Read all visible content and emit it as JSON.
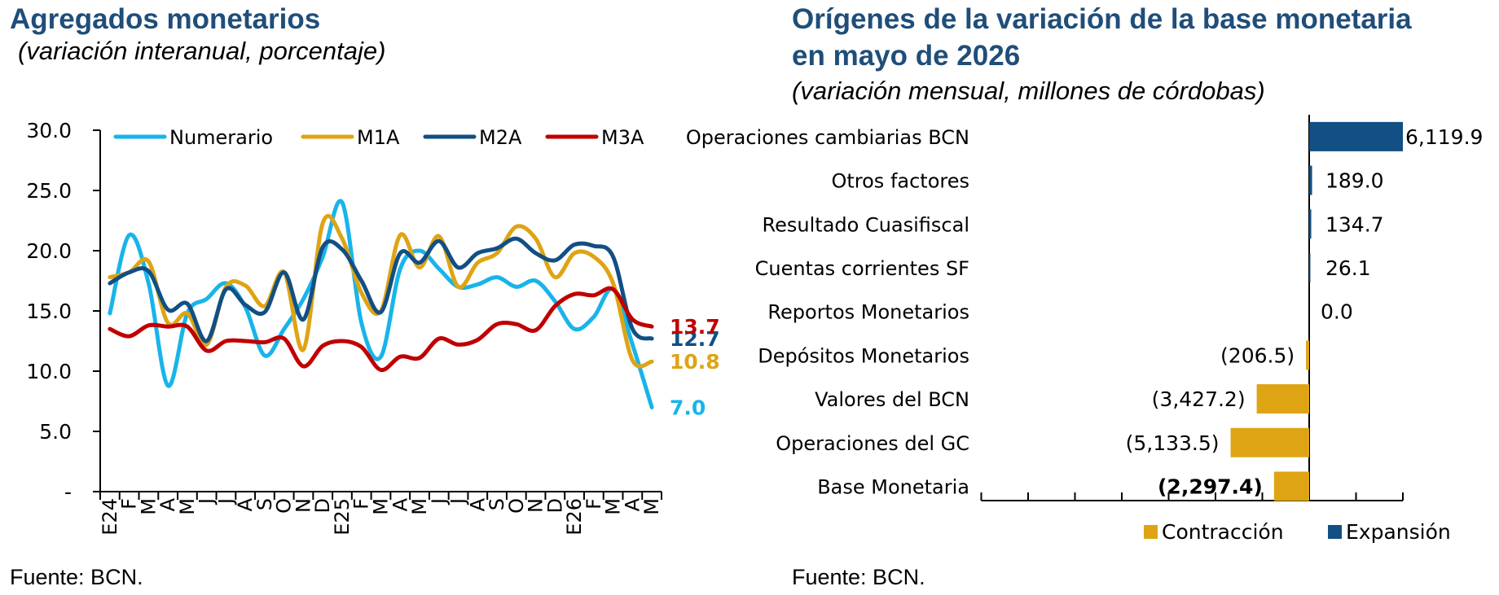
{
  "left": {
    "title": "Agregados monetarios",
    "subtitle": "(variación interanual, porcentaje)",
    "source": "Fuente: BCN."
  },
  "right": {
    "title_line1": "Orígenes de la variación de la base monetaria",
    "title_line2": "en mayo de 2026",
    "subtitle": "(variación mensual, millones de córdobas)",
    "source": "Fuente: BCN."
  },
  "chart_data": [
    {
      "type": "line",
      "categories": [
        "E24",
        "F",
        "M",
        "A",
        "M",
        "J",
        "J",
        "A",
        "S",
        "O",
        "N",
        "D",
        "E25",
        "F",
        "M",
        "A",
        "M",
        "J",
        "J",
        "A",
        "S",
        "O",
        "N",
        "D",
        "E26",
        "F",
        "M",
        "A",
        "M"
      ],
      "y_tick_labels": [
        "-",
        "5.0",
        "10.0",
        "15.0",
        "20.0",
        "25.0",
        "30.0"
      ],
      "ylim": [
        0,
        30
      ],
      "legend_position": "top",
      "series": [
        {
          "name": "Numerario",
          "color": "#18b4ea",
          "values": [
            14.8,
            21.3,
            17.3,
            8.8,
            14.8,
            16.0,
            17.3,
            15.3,
            11.3,
            13.5,
            16.0,
            19.5,
            24.0,
            14.0,
            11.2,
            18.5,
            20.0,
            18.5,
            17.0,
            17.2,
            17.8,
            17.0,
            17.5,
            15.8,
            13.5,
            14.5,
            16.8,
            12.2,
            7.0
          ],
          "end_label": "7.0"
        },
        {
          "name": "M1A",
          "color": "#dea414",
          "values": [
            17.8,
            18.2,
            19.1,
            14.0,
            14.8,
            12.2,
            17.0,
            17.1,
            15.4,
            18.2,
            11.8,
            22.3,
            21.0,
            16.5,
            15.0,
            21.3,
            18.6,
            21.2,
            17.0,
            19.0,
            19.8,
            22.0,
            21.0,
            17.8,
            19.8,
            19.5,
            17.3,
            10.9,
            10.8
          ],
          "end_label": "10.8"
        },
        {
          "name": "M2A",
          "color": "#114f84",
          "values": [
            17.3,
            18.2,
            18.3,
            15.1,
            15.6,
            12.5,
            16.8,
            15.5,
            14.9,
            18.2,
            14.3,
            20.3,
            20.1,
            17.5,
            14.9,
            19.8,
            19.0,
            20.8,
            18.6,
            19.8,
            20.2,
            21.0,
            19.8,
            19.2,
            20.5,
            20.4,
            19.5,
            13.5,
            12.7
          ],
          "end_label": "12.7"
        },
        {
          "name": "M3A",
          "color": "#c00000",
          "values": [
            13.5,
            12.9,
            13.8,
            13.7,
            13.7,
            11.7,
            12.5,
            12.5,
            12.4,
            12.7,
            10.4,
            12.1,
            12.5,
            12.0,
            10.1,
            11.2,
            11.1,
            12.7,
            12.2,
            12.6,
            13.9,
            13.9,
            13.4,
            15.4,
            16.4,
            16.3,
            16.8,
            14.3,
            13.7
          ],
          "end_label": "13.7"
        }
      ]
    },
    {
      "type": "bar",
      "orientation": "horizontal",
      "categories": [
        "Operaciones cambiarias BCN",
        "Otros factores",
        "Resultado Cuasifiscal",
        "Cuentas corrientes SF",
        "Reportos Monetarios",
        "Depósitos Monetarios",
        "Valores del BCN",
        "Operaciones del GC",
        "Base Monetaria"
      ],
      "values": [
        6119.9,
        189.0,
        134.7,
        26.1,
        0.0,
        -206.5,
        -3427.2,
        -5133.5,
        -2297.4
      ],
      "value_labels": [
        "6,119.9",
        "189.0",
        "134.7",
        "26.1",
        "0.0",
        "(206.5)",
        "(3,427.2)",
        "(5,133.5)",
        "(2,297.4)"
      ],
      "legend": [
        "Contracción",
        "Expansión"
      ],
      "legend_position": "bottom",
      "colors": {
        "Contracción": "#dea414",
        "Expansión": "#114f84"
      }
    }
  ]
}
